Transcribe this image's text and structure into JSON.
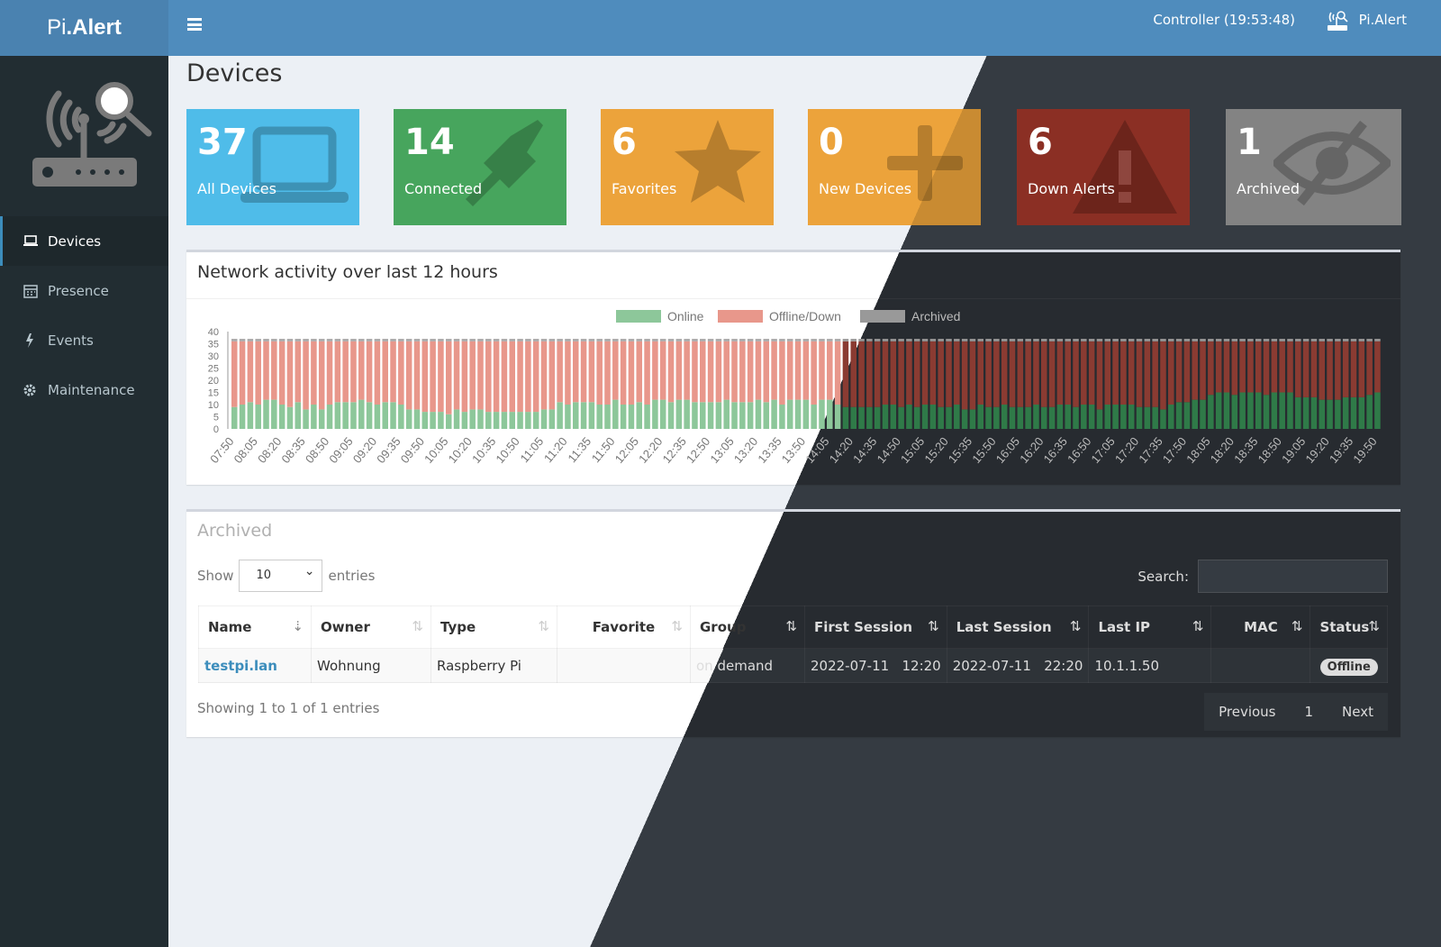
{
  "header": {
    "logo_pre": "Pi",
    "logo_post": ".Alert",
    "controller": "Controller (19:53:48)",
    "user": "Pi.Alert"
  },
  "sidebar": {
    "items": [
      {
        "label": "Devices",
        "icon": "laptop-icon",
        "active": true
      },
      {
        "label": "Presence",
        "icon": "calendar-icon"
      },
      {
        "label": "Events",
        "icon": "bolt-icon"
      },
      {
        "label": "Maintenance",
        "icon": "gear-icon"
      }
    ]
  },
  "page": {
    "title": "Devices"
  },
  "cards": [
    {
      "value": "37",
      "label": "All Devices",
      "color": "#4fbce9",
      "icon": "laptop-icon"
    },
    {
      "value": "14",
      "label": "Connected",
      "color": "#47a55d",
      "icon": "plug-icon"
    },
    {
      "value": "6",
      "label": "Favorites",
      "color": "#eca33b",
      "icon": "star-icon"
    },
    {
      "value": "0",
      "label": "New Devices",
      "color": "#eca33b",
      "icon": "plus-icon"
    },
    {
      "value": "6",
      "label": "Down Alerts",
      "color": "#dd4b39",
      "icon": "warning-icon"
    },
    {
      "value": "1",
      "label": "Archived",
      "color": "#9a9a9a",
      "icon": "eye-slash-icon"
    }
  ],
  "chart_title": "Network activity over last 12 hours",
  "chart_data": {
    "type": "bar",
    "stacked": true,
    "ylim": [
      0,
      40
    ],
    "yticks": [
      0,
      5,
      10,
      15,
      20,
      25,
      30,
      35,
      40
    ],
    "legend": "top",
    "series": [
      {
        "name": "Online",
        "color": "#8dc79a"
      },
      {
        "name": "Offline/Down",
        "color": "#e8978b"
      },
      {
        "name": "Archived",
        "color": "#a8a8a8"
      }
    ],
    "x_start": "07:50",
    "x_step_minutes": 5,
    "online": [
      9,
      10,
      11,
      10,
      12,
      12,
      10,
      9,
      11,
      8,
      10,
      8,
      10,
      11,
      11,
      11,
      12,
      11,
      10,
      11,
      11,
      10,
      8,
      8,
      7,
      7,
      7,
      6,
      8,
      7,
      8,
      8,
      7,
      7,
      7,
      7,
      7,
      7,
      7,
      8,
      8,
      11,
      10,
      11,
      11,
      11,
      10,
      10,
      12,
      10,
      10,
      11,
      10,
      12,
      12,
      11,
      12,
      12,
      11,
      11,
      11,
      11,
      12,
      11,
      11,
      11,
      12,
      11,
      12,
      10,
      12,
      12,
      12,
      10,
      12,
      12,
      10,
      9,
      9,
      9,
      9,
      9,
      10,
      10,
      9,
      10,
      9,
      10,
      10,
      9,
      9,
      10,
      8,
      8,
      10,
      9,
      9,
      10,
      9,
      9,
      9,
      10,
      9,
      9,
      10,
      10,
      9,
      10,
      10,
      8,
      10,
      10,
      10,
      10,
      9,
      9,
      9,
      8,
      10,
      11,
      11,
      12,
      12,
      14,
      15,
      15,
      14,
      15,
      15,
      15,
      14,
      15,
      15,
      15,
      13,
      13,
      13,
      12,
      12,
      12,
      13,
      13,
      13,
      14,
      15
    ],
    "total_active": 36,
    "archived": 1
  },
  "table": {
    "title": "Archived",
    "show": "Show",
    "entries": "entries",
    "page_size": "10",
    "search": "Search:",
    "columns": [
      "Name",
      "Owner",
      "Type",
      "Favorite",
      "Group",
      "First Session",
      "Last Session",
      "Last IP",
      "MAC",
      "Status"
    ],
    "rows": [
      [
        "testpi.lan",
        "Wohnung",
        "Raspberry Pi",
        "",
        "on demand",
        "2022-07-11   12:20",
        "2022-07-11   22:20",
        "10.1.1.50",
        "",
        "Offline"
      ]
    ],
    "info": "Showing 1 to 1 of 1 entries",
    "prev": "Previous",
    "page": "1",
    "next": "Next"
  }
}
